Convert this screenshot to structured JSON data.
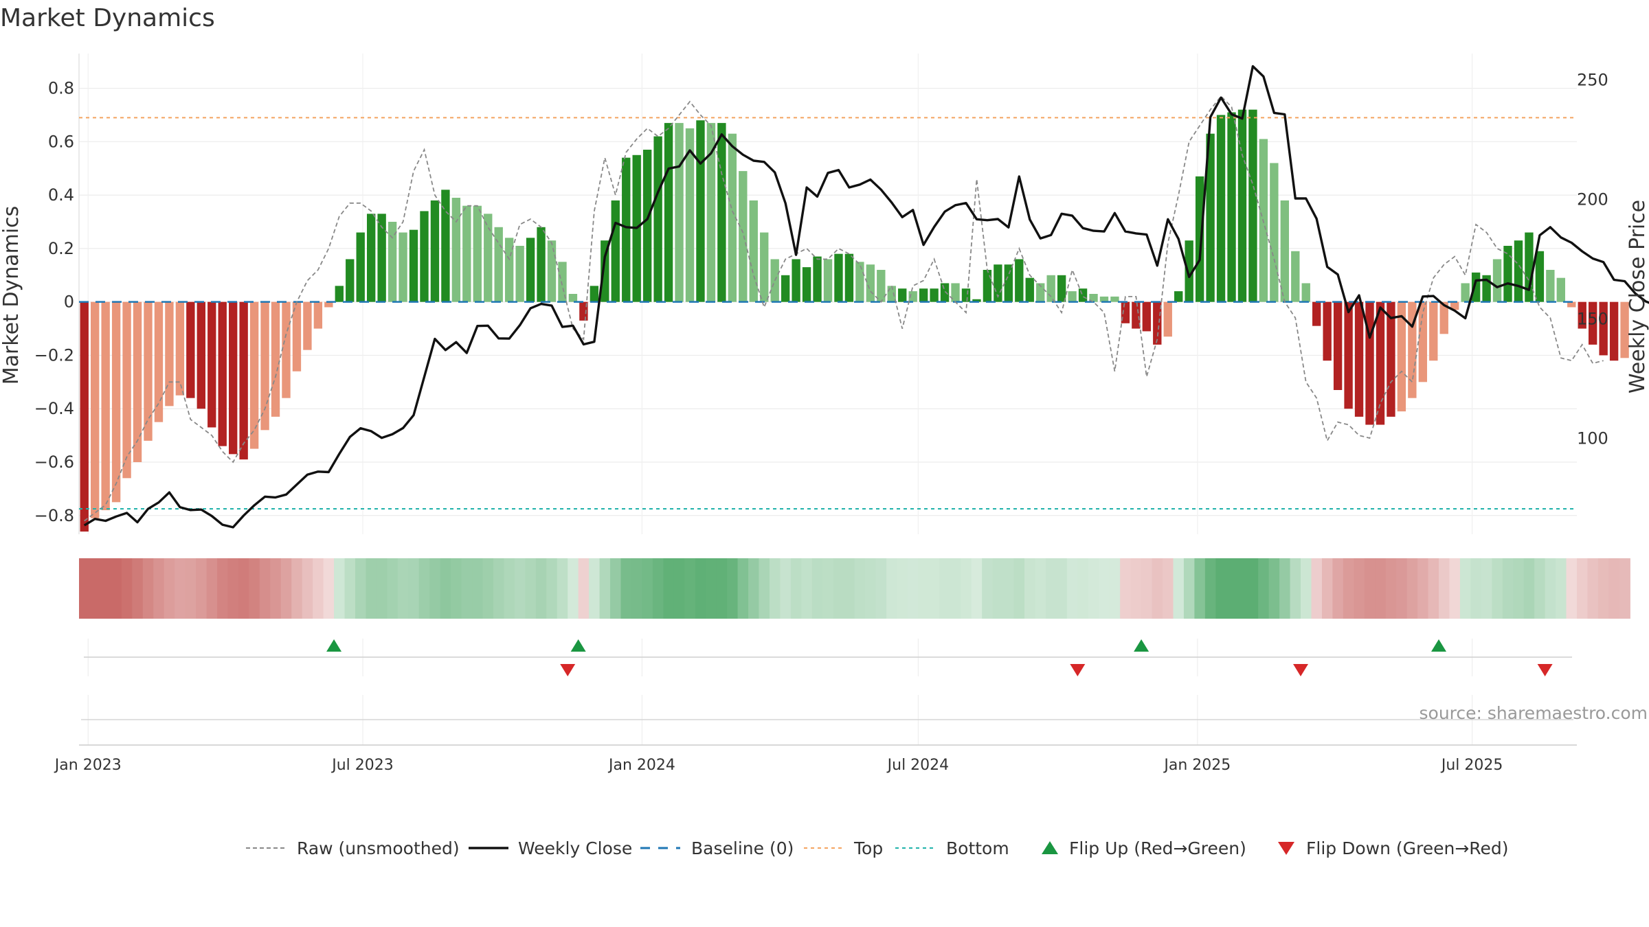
{
  "chart_data": {
    "type": "bar",
    "title": "Market Dynamics",
    "ylabel_left": "Market Dynamics",
    "ylabel_right": "Weekly Close Price",
    "ylim_left": [
      -0.87,
      0.93
    ],
    "ylim_right": [
      60,
      261
    ],
    "yticks_left": [
      -0.8,
      -0.6,
      -0.4,
      -0.2,
      0,
      0.2,
      0.4,
      0.6,
      0.8
    ],
    "yticks_left_labels": [
      "−0.8",
      "−0.6",
      "−0.4",
      "−0.2",
      "0",
      "0.2",
      "0.4",
      "0.6",
      "0.8"
    ],
    "yticks_right": [
      100,
      150,
      200,
      250
    ],
    "x_start": "2022-12-26",
    "x_end": "2025-09-08",
    "xticks": [
      {
        "date": "2023-01-01",
        "label": "Jan 2023"
      },
      {
        "date": "2023-07-01",
        "label": "Jul 2023"
      },
      {
        "date": "2024-01-01",
        "label": "Jan 2024"
      },
      {
        "date": "2024-07-01",
        "label": "Jul 2024"
      },
      {
        "date": "2025-01-01",
        "label": "Jan 2025"
      },
      {
        "date": "2025-07-01",
        "label": "Jul 2025"
      }
    ],
    "top_threshold": 0.69,
    "bottom_threshold": -0.775,
    "baseline": 0,
    "grid": true,
    "colors": {
      "strong_green": "#228b22",
      "light_green": "#7fbf7f",
      "strong_red": "#b22222",
      "light_red": "#e9967a",
      "close_line": "#111111",
      "raw_line": "#888888",
      "baseline": "#1f77b4",
      "top": "#f4a460",
      "bottom": "#20b2aa",
      "flip_up": "#1a9641",
      "flip_down": "#d62728"
    },
    "series": [
      {
        "name": "Market Dynamics",
        "values": [
          -0.86,
          -0.81,
          -0.78,
          -0.75,
          -0.66,
          -0.6,
          -0.52,
          -0.45,
          -0.39,
          -0.35,
          -0.36,
          -0.4,
          -0.47,
          -0.54,
          -0.57,
          -0.59,
          -0.55,
          -0.48,
          -0.43,
          -0.36,
          -0.26,
          -0.18,
          -0.1,
          -0.02,
          0.06,
          0.16,
          0.26,
          0.33,
          0.33,
          0.3,
          0.26,
          0.27,
          0.34,
          0.38,
          0.42,
          0.39,
          0.36,
          0.36,
          0.33,
          0.28,
          0.24,
          0.21,
          0.24,
          0.28,
          0.23,
          0.15,
          0.03,
          -0.07,
          0.06,
          0.23,
          0.38,
          0.54,
          0.55,
          0.57,
          0.62,
          0.67,
          0.67,
          0.65,
          0.68,
          0.67,
          0.67,
          0.63,
          0.49,
          0.38,
          0.26,
          0.16,
          0.1,
          0.16,
          0.13,
          0.17,
          0.16,
          0.18,
          0.18,
          0.15,
          0.14,
          0.12,
          0.06,
          0.05,
          0.04,
          0.05,
          0.05,
          0.07,
          0.07,
          0.05,
          0.01,
          0.12,
          0.14,
          0.14,
          0.16,
          0.09,
          0.07,
          0.1,
          0.1,
          0.04,
          0.05,
          0.03,
          0.02,
          0.02,
          -0.08,
          -0.1,
          -0.11,
          -0.16,
          -0.13,
          0.04,
          0.23,
          0.47,
          0.63,
          0.7,
          0.71,
          0.72,
          0.72,
          0.61,
          0.52,
          0.38,
          0.19,
          0.07,
          -0.09,
          -0.22,
          -0.33,
          -0.4,
          -0.43,
          -0.46,
          -0.46,
          -0.43,
          -0.41,
          -0.36,
          -0.3,
          -0.22,
          -0.12,
          -0.03,
          0.07,
          0.11,
          0.1,
          0.16,
          0.21,
          0.23,
          0.26,
          0.19,
          0.12,
          0.09,
          -0.02,
          -0.1,
          -0.16,
          -0.2,
          -0.22,
          -0.21
        ],
        "strong": [
          1,
          0,
          0,
          0,
          0,
          0,
          0,
          0,
          0,
          0,
          1,
          1,
          1,
          1,
          1,
          1,
          0,
          0,
          0,
          0,
          0,
          0,
          0,
          0,
          1,
          1,
          1,
          1,
          1,
          0,
          0,
          1,
          1,
          1,
          1,
          0,
          0,
          0,
          0,
          0,
          0,
          0,
          1,
          1,
          0,
          0,
          0,
          1,
          1,
          1,
          1,
          1,
          1,
          1,
          1,
          1,
          0,
          0,
          1,
          0,
          1,
          0,
          0,
          0,
          0,
          0,
          1,
          1,
          1,
          1,
          0,
          1,
          1,
          0,
          0,
          0,
          0,
          1,
          0,
          1,
          1,
          1,
          0,
          1,
          1,
          1,
          1,
          1,
          1,
          1,
          0,
          0,
          1,
          0,
          1,
          0,
          0,
          0,
          1,
          1,
          1,
          1,
          0,
          1,
          1,
          1,
          1,
          1,
          1,
          1,
          1,
          0,
          0,
          0,
          0,
          0,
          1,
          1,
          1,
          1,
          1,
          1,
          1,
          1,
          0,
          0,
          0,
          0,
          0,
          0,
          0,
          1,
          1,
          0,
          1,
          1,
          1,
          1,
          0,
          0,
          0,
          1,
          1,
          1,
          1,
          0,
          0
        ]
      },
      {
        "name": "Raw (unsmoothed)",
        "values": [
          -0.82,
          -0.79,
          -0.76,
          -0.68,
          -0.58,
          -0.52,
          -0.44,
          -0.38,
          -0.3,
          -0.3,
          -0.44,
          -0.47,
          -0.5,
          -0.56,
          -0.6,
          -0.53,
          -0.48,
          -0.4,
          -0.28,
          -0.12,
          0.0,
          0.08,
          0.12,
          0.2,
          0.32,
          0.37,
          0.37,
          0.34,
          0.28,
          0.24,
          0.3,
          0.49,
          0.57,
          0.4,
          0.34,
          0.3,
          0.36,
          0.36,
          0.28,
          0.22,
          0.16,
          0.29,
          0.31,
          0.28,
          0.22,
          0.06,
          -0.1,
          -0.14,
          0.34,
          0.54,
          0.4,
          0.56,
          0.61,
          0.65,
          0.62,
          0.65,
          0.7,
          0.75,
          0.7,
          0.66,
          0.48,
          0.34,
          0.26,
          0.1,
          -0.02,
          0.08,
          0.16,
          0.18,
          0.2,
          0.16,
          0.16,
          0.2,
          0.18,
          0.14,
          0.04,
          0.0,
          0.06,
          -0.1,
          0.06,
          0.08,
          0.16,
          0.04,
          0.0,
          -0.04,
          0.46,
          0.12,
          0.02,
          0.1,
          0.2,
          0.1,
          0.06,
          0.02,
          -0.04,
          0.12,
          0.02,
          0.0,
          -0.04,
          -0.26,
          0.02,
          0.02,
          -0.28,
          -0.14,
          0.22,
          0.4,
          0.6,
          0.66,
          0.72,
          0.77,
          0.73,
          0.55,
          0.44,
          0.3,
          0.16,
          0.0,
          -0.06,
          -0.3,
          -0.36,
          -0.52,
          -0.45,
          -0.46,
          -0.5,
          -0.51,
          -0.38,
          -0.3,
          -0.26,
          -0.3,
          -0.04,
          0.09,
          0.14,
          0.17,
          0.1,
          0.29,
          0.26,
          0.2,
          0.18,
          0.14,
          0.08,
          -0.02,
          -0.06,
          -0.21,
          -0.22,
          -0.16,
          -0.23,
          -0.22
        ]
      },
      {
        "name": "Weekly Close",
        "values": [
          63.7,
          66.4,
          65.6,
          67.4,
          68.9,
          65,
          70.6,
          73.3,
          77.5,
          71.3,
          70.1,
          70.3,
          67.6,
          64,
          62.9,
          67.8,
          72.1,
          75.7,
          75.4,
          76.6,
          80.8,
          84.9,
          86.2,
          86,
          93.6,
          100.7,
          104.3,
          103.1,
          100.3,
          101.8,
          104.4,
          109.8,
          125.8,
          141.7,
          137,
          140.3,
          135.8,
          147.1,
          147.2,
          141.9,
          141.8,
          147.4,
          154.5,
          156.3,
          155.6,
          146.7,
          147.2,
          139.4,
          140.5,
          176,
          190.2,
          188.4,
          188.1,
          191.8,
          203,
          212.9,
          213.8,
          220.5,
          215,
          219.3,
          227.2,
          222.2,
          218.7,
          216.2,
          215.7,
          211.3,
          198.4,
          176.8,
          205,
          201.2,
          211.1,
          212.3,
          205,
          206.2,
          208.3,
          204.1,
          198.7,
          192.6,
          195.6,
          181,
          188.5,
          194.9,
          197.6,
          198.5,
          191.7,
          191.3,
          191.8,
          188.3,
          209.6,
          191.6,
          183.7,
          185.1,
          194,
          193.2,
          188,
          186.9,
          186.6,
          194.3,
          186.6,
          185.8,
          185.3,
          172.3,
          191.7,
          183.5,
          167.6,
          174.7,
          234.4,
          242.6,
          235.6,
          233.8,
          255.7,
          251.4,
          236.2,
          235.6,
          200.4,
          200.4,
          191.9,
          171.8,
          168.6,
          152.9,
          159.9,
          142.2,
          154.8,
          150.4,
          151.2,
          146.8,
          159.4,
          159.6,
          155.8,
          153.5,
          150.3,
          166.1,
          166.4,
          163.3,
          164.9,
          163.8,
          162.2,
          185,
          188.4,
          184.1,
          181.9,
          178.3,
          175.3,
          173.8,
          166.4,
          165.8,
          160.7,
          157.3,
          155.6,
          157.4,
          154.1,
          154.5
        ]
      }
    ],
    "regime_strip": {
      "values": [
        -0.86,
        -0.81,
        -0.78,
        -0.75,
        -0.66,
        -0.6,
        -0.52,
        -0.45,
        -0.39,
        -0.35,
        -0.36,
        -0.4,
        -0.47,
        -0.54,
        -0.57,
        -0.59,
        -0.55,
        -0.48,
        -0.43,
        -0.36,
        -0.26,
        -0.18,
        -0.1,
        -0.02,
        0.06,
        0.16,
        0.26,
        0.33,
        0.33,
        0.3,
        0.26,
        0.27,
        0.34,
        0.38,
        0.42,
        0.39,
        0.36,
        0.36,
        0.33,
        0.28,
        0.24,
        0.21,
        0.24,
        0.28,
        0.23,
        0.15,
        0.03,
        -0.07,
        0.06,
        0.23,
        0.38,
        0.54,
        0.55,
        0.57,
        0.62,
        0.67,
        0.67,
        0.65,
        0.68,
        0.67,
        0.67,
        0.63,
        0.49,
        0.38,
        0.26,
        0.16,
        0.1,
        0.16,
        0.13,
        0.17,
        0.16,
        0.18,
        0.18,
        0.15,
        0.14,
        0.12,
        0.06,
        0.05,
        0.04,
        0.05,
        0.05,
        0.07,
        0.07,
        0.05,
        0.01,
        0.12,
        0.14,
        0.14,
        0.16,
        0.09,
        0.07,
        0.1,
        0.1,
        0.04,
        0.05,
        0.03,
        0.02,
        0.02,
        -0.08,
        -0.1,
        -0.11,
        -0.16,
        -0.13,
        0.04,
        0.23,
        0.47,
        0.63,
        0.7,
        0.71,
        0.72,
        0.72,
        0.61,
        0.52,
        0.38,
        0.19,
        0.07,
        -0.09,
        -0.22,
        -0.33,
        -0.4,
        -0.43,
        -0.46,
        -0.46,
        -0.43,
        -0.41,
        -0.36,
        -0.3,
        -0.22,
        -0.12,
        -0.03,
        0.07,
        0.11,
        0.1,
        0.16,
        0.21,
        0.23,
        0.26,
        0.19,
        0.12,
        0.09,
        -0.02,
        -0.1,
        -0.16,
        -0.2,
        -0.22,
        -0.21
      ]
    },
    "flips": [
      {
        "type": "up",
        "date": "2023-06-12"
      },
      {
        "type": "down",
        "date": "2023-11-13"
      },
      {
        "type": "up",
        "date": "2023-11-20"
      },
      {
        "type": "down",
        "date": "2024-10-14"
      },
      {
        "type": "up",
        "date": "2024-11-25"
      },
      {
        "type": "down",
        "date": "2025-03-10"
      },
      {
        "type": "up",
        "date": "2025-06-09"
      },
      {
        "type": "down",
        "date": "2025-08-18"
      }
    ],
    "legend": [
      {
        "label": "Raw (unsmoothed)",
        "symbol": "dashed-gray"
      },
      {
        "label": "Weekly Close",
        "symbol": "solid-black"
      },
      {
        "label": "Baseline (0)",
        "symbol": "dashed-blue"
      },
      {
        "label": "Top",
        "symbol": "dotted-orange"
      },
      {
        "label": "Bottom",
        "symbol": "dotted-teal"
      },
      {
        "label": "Flip Up (Red→Green)",
        "symbol": "triangle-up-green"
      },
      {
        "label": "Flip Down (Green→Red)",
        "symbol": "triangle-down-red"
      }
    ],
    "legend_position": "bottom-center",
    "source": "source: sharemaestro.com"
  }
}
